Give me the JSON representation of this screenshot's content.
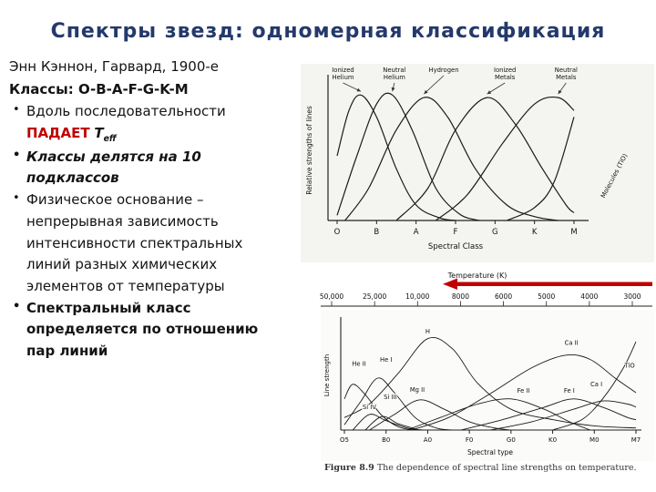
{
  "slide_title": "Спектры звезд: одномерная классификация",
  "left_panel": {
    "intro": "Энн Кэннон, Гарвард, 1900-е",
    "classes_line": "Классы: O-B-A-F-G-K-M",
    "bullet1_pre": "Вдоль последовательности",
    "bullet1_falls": "ПАДАЕТ",
    "bullet1_t": "T",
    "bullet1_t_sub": "eff",
    "bullet2": "Классы делятся на 10 подклассов",
    "bullet3": "Физическое основание – непрерывная зависимость интенсивности спектральных линий разных химических элементов от температуры",
    "bullet4": "Спектральный класс определяется по отношению пар линий"
  },
  "temperature_scale": {
    "label": "Temperature (K)",
    "values": [
      "50,000",
      "25,000",
      "10,000",
      "8000",
      "6000",
      "5000",
      "4000",
      "3000"
    ],
    "arrow_color": "#c00000",
    "arrow_direction": "left"
  },
  "caption": {
    "figure_label": "Figure 8.9",
    "text": "The dependence of spectral line strengths on temperature."
  },
  "colors": {
    "title": "#24396b",
    "accent_red": "#c00000",
    "ink": "#1a1a1a"
  },
  "chart_data": [
    {
      "type": "line",
      "title": "",
      "xlabel": "Spectral Class",
      "ylabel": "Relative strengths of lines",
      "x_ticks": [
        "O",
        "B",
        "A",
        "F",
        "G",
        "K",
        "M"
      ],
      "x_range": [
        0,
        6
      ],
      "y_range": [
        0,
        1
      ],
      "grid": false,
      "legend": "labels-with-arrows-above",
      "series": [
        {
          "name": "Ionized Helium",
          "label_lines": [
            "Ionized",
            "Helium"
          ],
          "label_x": 0.15,
          "points": [
            [
              0,
              0.5
            ],
            [
              0.3,
              0.85
            ],
            [
              0.6,
              0.97
            ],
            [
              1.0,
              0.8
            ],
            [
              1.5,
              0.4
            ],
            [
              2.0,
              0.12
            ],
            [
              2.6,
              0.02
            ],
            [
              3.0,
              0
            ]
          ]
        },
        {
          "name": "Neutral Helium",
          "label_lines": [
            "Neutral",
            "Helium"
          ],
          "label_x": 1.45,
          "points": [
            [
              0,
              0.04
            ],
            [
              0.5,
              0.5
            ],
            [
              1.0,
              0.9
            ],
            [
              1.4,
              0.97
            ],
            [
              1.9,
              0.7
            ],
            [
              2.5,
              0.25
            ],
            [
              3.1,
              0.05
            ],
            [
              3.6,
              0
            ]
          ]
        },
        {
          "name": "Hydrogen",
          "label_lines": [
            "Hydrogen"
          ],
          "label_x": 2.7,
          "points": [
            [
              0.2,
              0
            ],
            [
              0.8,
              0.25
            ],
            [
              1.5,
              0.7
            ],
            [
              2.2,
              0.95
            ],
            [
              2.8,
              0.8
            ],
            [
              3.5,
              0.4
            ],
            [
              4.3,
              0.12
            ],
            [
              5.0,
              0.03
            ],
            [
              5.6,
              0
            ]
          ]
        },
        {
          "name": "Ionized Metals",
          "label_lines": [
            "Ionized",
            "Metals"
          ],
          "label_x": 4.25,
          "points": [
            [
              1.5,
              0
            ],
            [
              2.3,
              0.25
            ],
            [
              3.0,
              0.7
            ],
            [
              3.8,
              0.95
            ],
            [
              4.5,
              0.75
            ],
            [
              5.2,
              0.4
            ],
            [
              5.8,
              0.12
            ],
            [
              6,
              0.06
            ]
          ]
        },
        {
          "name": "Neutral Metals",
          "label_lines": [
            "Neutral",
            "Metals"
          ],
          "label_x": 5.8,
          "points": [
            [
              2.5,
              0
            ],
            [
              3.3,
              0.2
            ],
            [
              4.2,
              0.6
            ],
            [
              5.0,
              0.9
            ],
            [
              5.6,
              0.95
            ],
            [
              6,
              0.85
            ]
          ]
        },
        {
          "name": "Molecules (TiO)",
          "rotated_label": true,
          "points": [
            [
              4.3,
              0
            ],
            [
              5.0,
              0.1
            ],
            [
              5.5,
              0.3
            ],
            [
              6,
              0.8
            ]
          ]
        }
      ]
    },
    {
      "type": "line",
      "title": "",
      "xlabel": "Spectral type",
      "ylabel": "Line strength",
      "x_ticks": [
        "O5",
        "B0",
        "A0",
        "F0",
        "G0",
        "K0",
        "M0",
        "M7"
      ],
      "x_range": [
        0,
        7
      ],
      "y_range": [
        0,
        1
      ],
      "grid": false,
      "legend": "inline-labels",
      "series": [
        {
          "name": "He II",
          "label_at": [
            0.35,
            0.62
          ],
          "points": [
            [
              0,
              0.3
            ],
            [
              0.2,
              0.44
            ],
            [
              0.5,
              0.34
            ],
            [
              0.9,
              0.14
            ],
            [
              1.3,
              0.03
            ],
            [
              1.7,
              0
            ]
          ]
        },
        {
          "name": "He I",
          "label_at": [
            1.0,
            0.66
          ],
          "points": [
            [
              0,
              0.05
            ],
            [
              0.4,
              0.28
            ],
            [
              0.8,
              0.5
            ],
            [
              1.2,
              0.36
            ],
            [
              1.7,
              0.12
            ],
            [
              2.2,
              0.02
            ],
            [
              2.6,
              0
            ]
          ]
        },
        {
          "name": "Si IV",
          "label_at": [
            0.6,
            0.2
          ],
          "points": [
            [
              0.2,
              0
            ],
            [
              0.6,
              0.15
            ],
            [
              1.0,
              0.09
            ],
            [
              1.5,
              0.02
            ],
            [
              1.9,
              0
            ]
          ]
        },
        {
          "name": "Si III",
          "label_at": [
            1.1,
            0.3
          ],
          "points": [
            [
              0.5,
              0
            ],
            [
              0.9,
              0.13
            ],
            [
              1.3,
              0.06
            ],
            [
              1.8,
              0
            ]
          ]
        },
        {
          "name": "Mg II",
          "label_at": [
            1.75,
            0.37
          ],
          "points": [
            [
              0.6,
              0
            ],
            [
              1.2,
              0.15
            ],
            [
              1.8,
              0.29
            ],
            [
              2.4,
              0.2
            ],
            [
              3.0,
              0.08
            ],
            [
              3.6,
              0.02
            ],
            [
              4.0,
              0
            ]
          ]
        },
        {
          "name": "H",
          "label_at": [
            2.0,
            0.93
          ],
          "points": [
            [
              0,
              0.12
            ],
            [
              0.6,
              0.25
            ],
            [
              1.3,
              0.55
            ],
            [
              2.0,
              0.88
            ],
            [
              2.6,
              0.78
            ],
            [
              3.2,
              0.45
            ],
            [
              4.0,
              0.2
            ],
            [
              5.0,
              0.1
            ],
            [
              6.0,
              0.04
            ],
            [
              7,
              0.02
            ]
          ]
        },
        {
          "name": "Fe II",
          "label_at": [
            4.3,
            0.36
          ],
          "points": [
            [
              1.5,
              0
            ],
            [
              2.3,
              0.12
            ],
            [
              3.2,
              0.25
            ],
            [
              4.0,
              0.3
            ],
            [
              4.8,
              0.2
            ],
            [
              5.4,
              0.08
            ],
            [
              5.9,
              0
            ]
          ]
        },
        {
          "name": "Fe I",
          "label_at": [
            5.4,
            0.36
          ],
          "points": [
            [
              2.8,
              0
            ],
            [
              3.8,
              0.1
            ],
            [
              4.8,
              0.22
            ],
            [
              5.5,
              0.3
            ],
            [
              6.2,
              0.22
            ],
            [
              6.8,
              0.12
            ],
            [
              7,
              0.1
            ]
          ]
        },
        {
          "name": "Ca II",
          "label_at": [
            5.45,
            0.82
          ],
          "points": [
            [
              1.6,
              0
            ],
            [
              2.5,
              0.12
            ],
            [
              3.5,
              0.35
            ],
            [
              4.5,
              0.6
            ],
            [
              5.3,
              0.72
            ],
            [
              5.9,
              0.68
            ],
            [
              6.5,
              0.5
            ],
            [
              7,
              0.36
            ]
          ]
        },
        {
          "name": "Ca I",
          "label_at": [
            6.05,
            0.42
          ],
          "points": [
            [
              3.5,
              0
            ],
            [
              4.5,
              0.08
            ],
            [
              5.5,
              0.2
            ],
            [
              6.2,
              0.28
            ],
            [
              6.8,
              0.25
            ],
            [
              7,
              0.22
            ]
          ]
        },
        {
          "name": "TiO",
          "label_at": [
            6.85,
            0.6
          ],
          "points": [
            [
              5.0,
              0
            ],
            [
              5.7,
              0.1
            ],
            [
              6.2,
              0.3
            ],
            [
              6.7,
              0.6
            ],
            [
              7,
              0.85
            ]
          ]
        }
      ]
    }
  ]
}
